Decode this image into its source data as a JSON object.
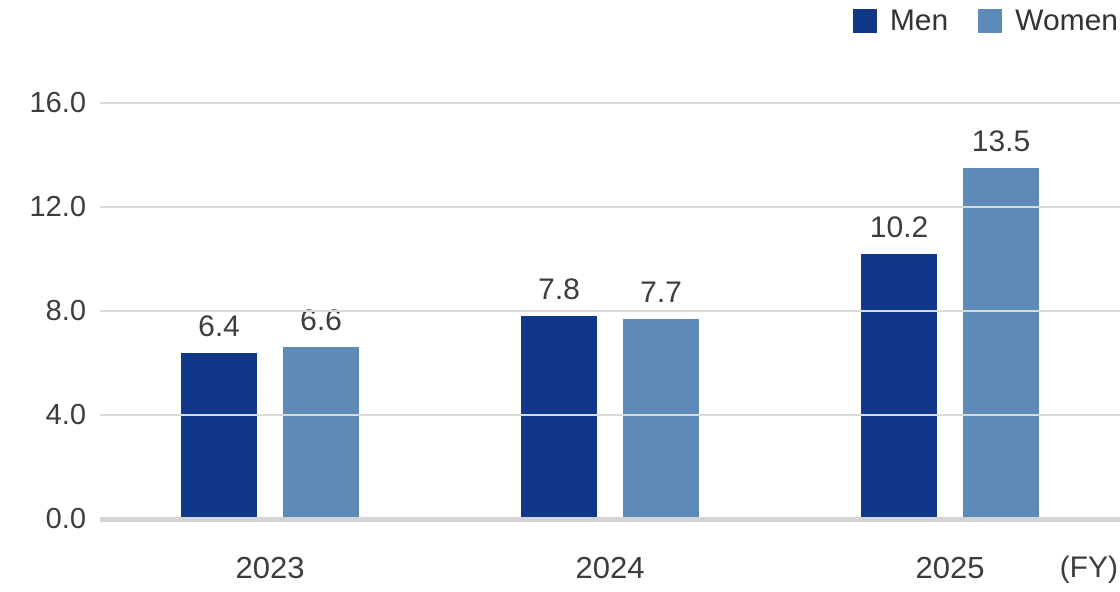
{
  "chart_data": {
    "type": "bar",
    "title": "",
    "categories": [
      "2023",
      "2024",
      "2025"
    ],
    "series": [
      {
        "name": "Men",
        "color": "#113789",
        "values": [
          6.4,
          7.8,
          10.2
        ]
      },
      {
        "name": "Women",
        "color": "#5e8ab8",
        "values": [
          6.6,
          7.7,
          13.5
        ]
      }
    ],
    "value_label_decimals": 1,
    "yticks": [
      0,
      4,
      8,
      12,
      16
    ],
    "ytick_labels": [
      "0.0",
      "4.0",
      "8.0",
      "12.0",
      "16.0"
    ],
    "ylim": [
      0,
      16
    ],
    "fy_label": "(FY)",
    "grid": true,
    "legend_position": "top-right"
  },
  "colors": {
    "gridline": "#d9d9d9",
    "baseline": "#d4d4d4",
    "axis_text": "#3d3d3d",
    "legend_text": "#333333",
    "background": "#ffffff"
  }
}
